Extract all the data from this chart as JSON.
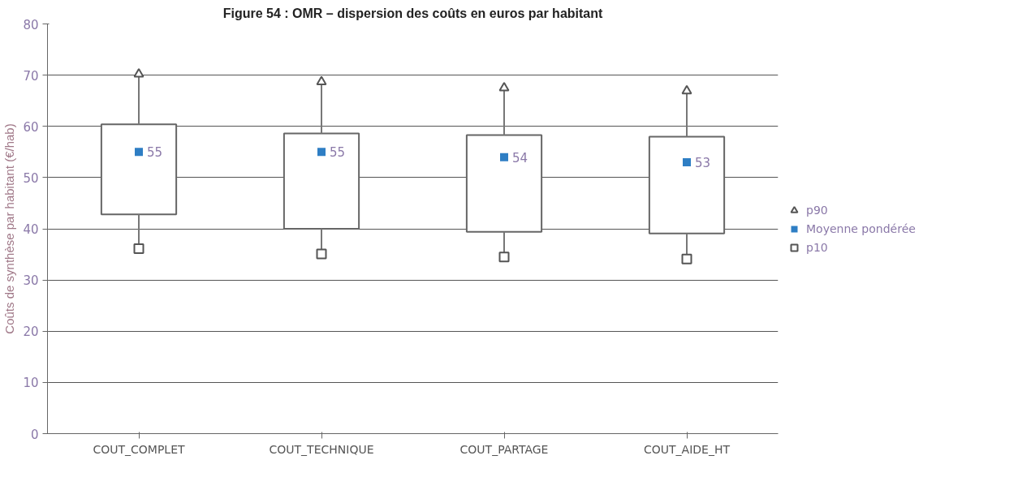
{
  "chart_data": {
    "type": "bar",
    "title": "Figure 54 : OMR – dispersion des coûts en euros par habitant",
    "ylabel": "Coûts de synthèse par habitant (€/hab)",
    "categories": [
      "COUT_COMPLET",
      "COUT_TECHNIQUE",
      "COUT_PARTAGE",
      "COUT_AIDE_HT"
    ],
    "ylim": [
      0,
      80
    ],
    "yticks": [
      0,
      10,
      20,
      30,
      40,
      50,
      60,
      70,
      80
    ],
    "grid": "y",
    "legend": "right",
    "series": [
      {
        "color": "#ffffff",
        "values": [
          17.6,
          18.6,
          18.9,
          18.9
        ],
        "base": [
          42.8,
          40.0,
          39.4,
          39.1
        ]
      },
      {
        "type": "scatter",
        "name": "p90",
        "color": "#ffffff",
        "marker": "triangle",
        "values": [
          70.2,
          68.7,
          67.5,
          66.9
        ],
        "errors": [
          [
            60.4,
            70.2
          ],
          [
            58.6,
            68.7
          ],
          [
            58.3,
            67.5
          ],
          [
            58.0,
            66.9
          ]
        ]
      },
      {
        "type": "scatter",
        "name": "Moyenne pondérée",
        "color": "#2e7ec4",
        "marker": "square",
        "values": [
          55,
          55,
          54,
          53
        ],
        "value_labels": [
          "55",
          "55",
          "54",
          "53"
        ]
      },
      {
        "type": "scatter",
        "name": "p10",
        "color": "#ffffff",
        "marker": "square",
        "values": [
          36.1,
          35.1,
          34.5,
          34.1
        ],
        "errors": [
          [
            36.1,
            42.8
          ],
          [
            35.1,
            40.0
          ],
          [
            34.5,
            39.4
          ],
          [
            34.1,
            39.1
          ]
        ]
      }
    ]
  }
}
